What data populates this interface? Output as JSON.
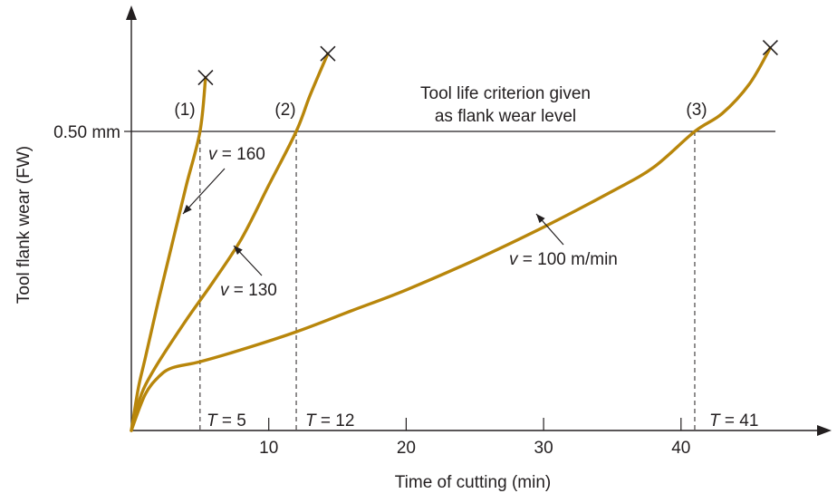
{
  "chart_data": {
    "type": "line",
    "xlabel": "Time of cutting (min)",
    "ylabel": "Tool flank wear (FW)",
    "xlim": [
      0,
      50
    ],
    "ylim": [
      0,
      0.75
    ],
    "x_ticks": [
      10,
      20,
      30,
      40
    ],
    "x_tick_labels": [
      "10",
      "20",
      "30",
      "40"
    ],
    "criterion": {
      "value": 0.5,
      "y_label": "0.50 mm",
      "text_line1": "Tool life criterion given",
      "text_line2": "as flank wear level"
    },
    "series": [
      {
        "name": "v = 160",
        "marker": "(1)",
        "v_prefix": "v",
        "v_suffix": " = 160",
        "tool_life_prefix": "T",
        "tool_life_suffix": " = 5",
        "tool_life": 5,
        "x": [
          0,
          0.5,
          1,
          2,
          3,
          4,
          5,
          5.4
        ],
        "y": [
          0,
          0.07,
          0.12,
          0.22,
          0.315,
          0.41,
          0.5,
          0.59
        ]
      },
      {
        "name": "v = 130",
        "marker": "(2)",
        "v_prefix": "v",
        "v_suffix": " = 130",
        "tool_life_prefix": "T",
        "tool_life_suffix": " = 12",
        "tool_life": 12,
        "x": [
          0,
          0.5,
          1,
          2,
          4,
          6,
          8,
          10,
          12,
          13,
          14.3
        ],
        "y": [
          0,
          0.045,
          0.075,
          0.115,
          0.185,
          0.25,
          0.32,
          0.41,
          0.5,
          0.56,
          0.63
        ]
      },
      {
        "name": "v = 100 m/min",
        "marker": "(3)",
        "v_prefix": "v",
        "v_suffix": " = 100 m/min",
        "tool_life_prefix": "T",
        "tool_life_suffix": " = 41",
        "tool_life": 41,
        "x": [
          0,
          1,
          2,
          3,
          5,
          8,
          12,
          16,
          20,
          25,
          30,
          35,
          38,
          41,
          43,
          45,
          46.5
        ],
        "y": [
          0,
          0.06,
          0.09,
          0.105,
          0.115,
          0.135,
          0.165,
          0.2,
          0.235,
          0.285,
          0.34,
          0.4,
          0.44,
          0.5,
          0.53,
          0.58,
          0.64
        ]
      }
    ],
    "line_color": "#b8860b"
  }
}
